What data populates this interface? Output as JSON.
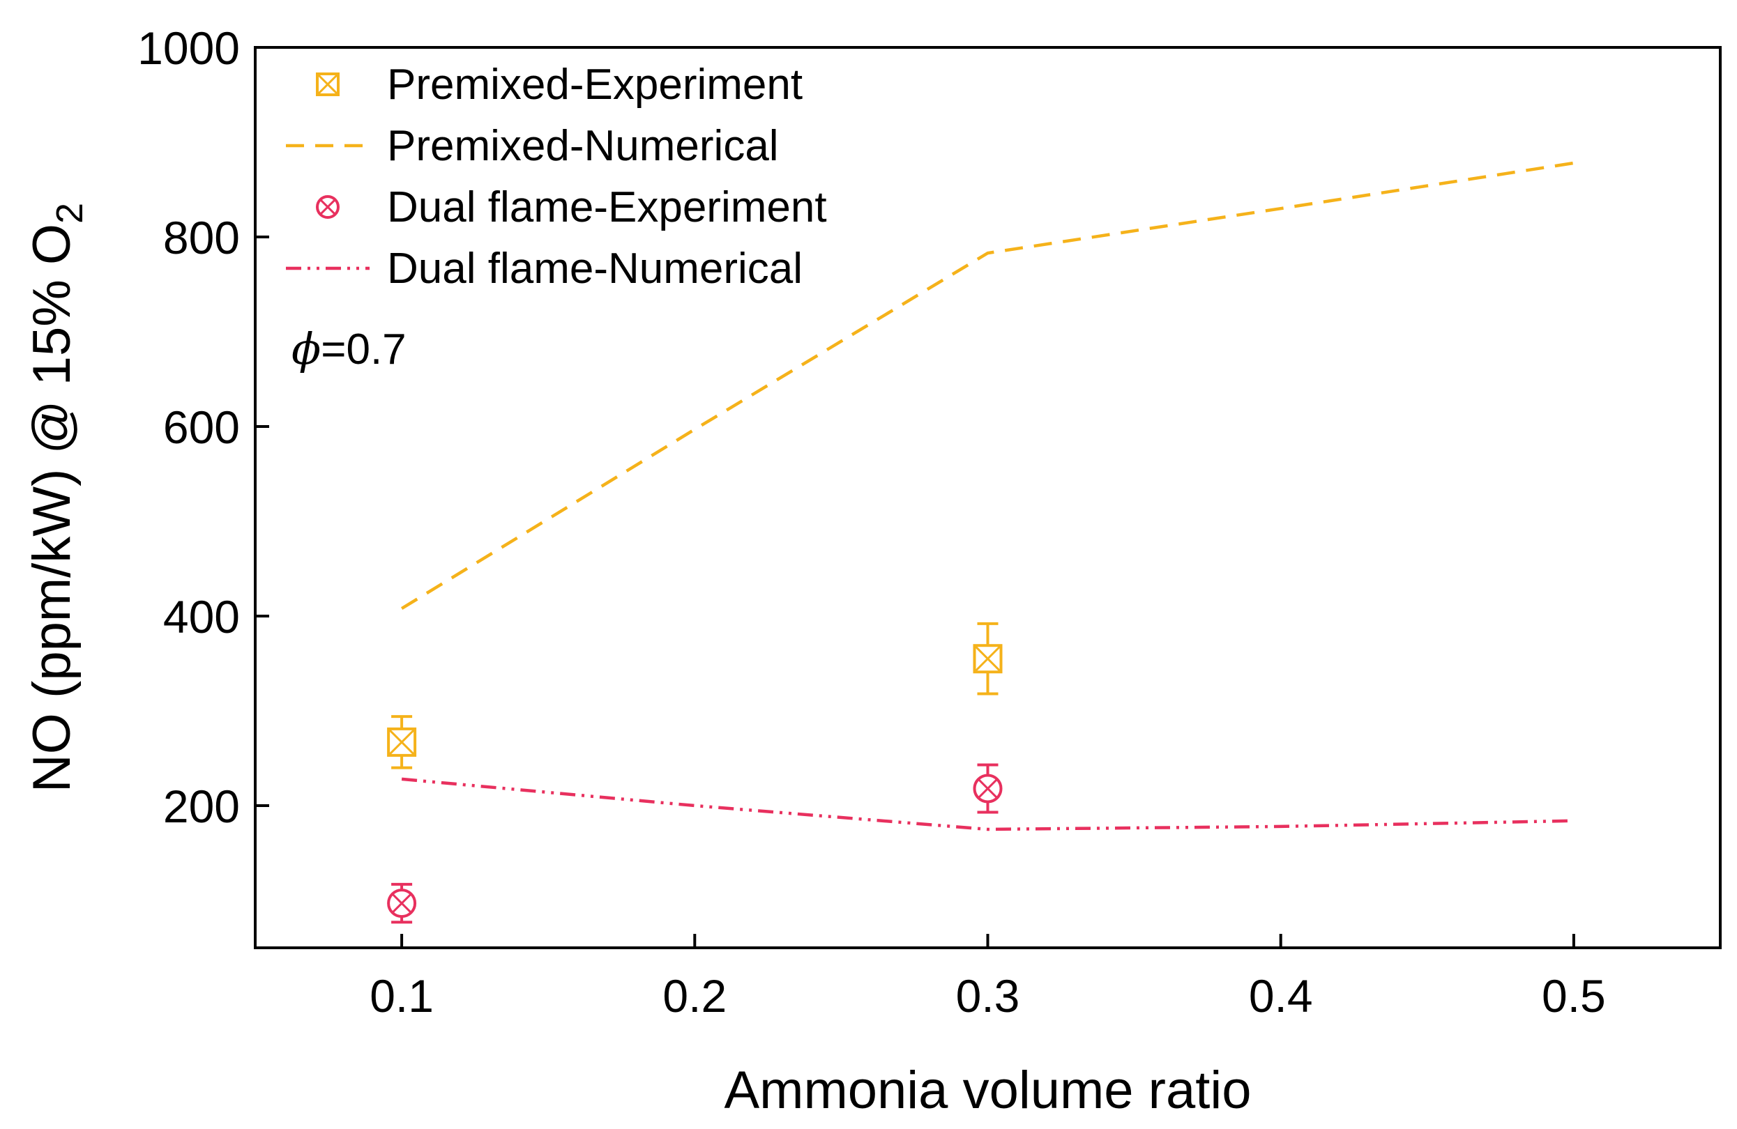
{
  "chart_data": {
    "type": "line",
    "title": "",
    "xlabel": "Ammonia volume ratio",
    "ylabel": "NO (ppm/kW) @ 15% O",
    "ylabel_subscript": "2",
    "xlim": [
      0.05,
      0.55
    ],
    "ylim": [
      50,
      1000
    ],
    "xticks": [
      0.1,
      0.2,
      0.3,
      0.4,
      0.5
    ],
    "xtick_labels": [
      "0.1",
      "0.2",
      "0.3",
      "0.4",
      "0.5"
    ],
    "yticks": [
      200,
      400,
      600,
      800,
      1000
    ],
    "ytick_labels": [
      "200",
      "400",
      "600",
      "800",
      "1000"
    ],
    "grid": false,
    "legend_position": "top-left",
    "annotation": {
      "symbol": "ϕ",
      "text": "=0.7"
    },
    "series": [
      {
        "name": "Premixed-Experiment",
        "kind": "scatter",
        "marker": "square-x",
        "color": "#F5B21A",
        "x": [
          0.1,
          0.3
        ],
        "y": [
          267,
          355
        ],
        "err": [
          27,
          37
        ]
      },
      {
        "name": "Premixed-Numerical",
        "kind": "line",
        "dash": "dash",
        "color": "#F5B21A",
        "x": [
          0.1,
          0.2,
          0.3,
          0.4,
          0.5
        ],
        "y": [
          408,
          597,
          783,
          830,
          878
        ]
      },
      {
        "name": "Dual flame-Experiment",
        "kind": "scatter",
        "marker": "circle-x",
        "color": "#E8305E",
        "x": [
          0.1,
          0.3
        ],
        "y": [
          97,
          218
        ],
        "err": [
          20,
          25
        ]
      },
      {
        "name": "Dual flame-Numerical",
        "kind": "line",
        "dash": "dash-dot-dot",
        "color": "#E8305E",
        "x": [
          0.1,
          0.2,
          0.3,
          0.4,
          0.5
        ],
        "y": [
          228,
          200,
          175,
          178,
          184
        ]
      }
    ]
  }
}
